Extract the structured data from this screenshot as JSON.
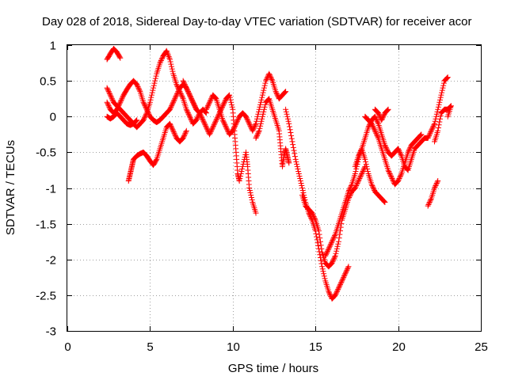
{
  "chart_data": {
    "type": "scatter",
    "title": "Day 028 of 2018, Sidereal Day-to-day VTEC variation (SDTVAR) for receiver acor",
    "xlabel": "GPS time / hours",
    "ylabel": "SDTVAR / TECUs",
    "xlim": [
      0,
      25
    ],
    "ylim": [
      -3,
      1
    ],
    "xticks": [
      "0",
      "5",
      "10",
      "15",
      "20",
      "25"
    ],
    "yticks": [
      "1",
      "0.5",
      "0",
      "-0.5",
      "-1",
      "-1.5",
      "-2",
      "-2.5",
      "-3"
    ],
    "grid": true,
    "legend": "none",
    "marker": "+",
    "color": "#ff0000",
    "series": [
      {
        "points": [
          [
            2.4,
            0.8
          ],
          [
            2.6,
            0.88
          ],
          [
            2.8,
            0.95
          ],
          [
            3.0,
            0.9
          ],
          [
            3.2,
            0.82
          ]
        ]
      },
      {
        "points": [
          [
            2.4,
            0.4
          ],
          [
            2.6,
            0.3
          ],
          [
            2.8,
            0.2
          ],
          [
            3.0,
            0.15
          ],
          [
            3.2,
            0.1
          ],
          [
            3.4,
            0.05
          ],
          [
            3.6,
            0.0
          ],
          [
            3.8,
            -0.05
          ],
          [
            4.0,
            -0.1
          ],
          [
            4.2,
            -0.15
          ],
          [
            4.4,
            -0.1
          ],
          [
            4.6,
            -0.05
          ],
          [
            4.8,
            0.05
          ],
          [
            5.0,
            0.2
          ],
          [
            5.2,
            0.4
          ],
          [
            5.4,
            0.6
          ],
          [
            5.6,
            0.75
          ],
          [
            5.8,
            0.85
          ],
          [
            6.0,
            0.92
          ],
          [
            6.2,
            0.8
          ],
          [
            6.4,
            0.6
          ],
          [
            6.6,
            0.45
          ],
          [
            6.8,
            0.35
          ],
          [
            7.0,
            0.25
          ],
          [
            7.2,
            0.1
          ],
          [
            7.4,
            0.0
          ],
          [
            7.6,
            -0.1
          ],
          [
            7.8,
            -0.05
          ],
          [
            8.0,
            0.05
          ],
          [
            8.2,
            0.1
          ],
          [
            8.4,
            0.05
          ]
        ]
      },
      {
        "points": [
          [
            2.4,
            0.2
          ],
          [
            2.6,
            0.1
          ],
          [
            2.8,
            0.05
          ],
          [
            3.0,
            0.1
          ],
          [
            3.2,
            0.2
          ],
          [
            3.4,
            0.3
          ],
          [
            3.6,
            0.38
          ],
          [
            3.8,
            0.45
          ],
          [
            4.0,
            0.5
          ],
          [
            4.2,
            0.45
          ],
          [
            4.4,
            0.35
          ],
          [
            4.6,
            0.2
          ],
          [
            4.8,
            0.1
          ],
          [
            5.0,
            0.0
          ],
          [
            5.2,
            -0.05
          ],
          [
            5.4,
            -0.08
          ],
          [
            5.6,
            -0.05
          ],
          [
            5.8,
            0.0
          ],
          [
            6.0,
            0.05
          ],
          [
            6.2,
            0.1
          ],
          [
            6.4,
            0.2
          ],
          [
            6.6,
            0.3
          ],
          [
            6.8,
            0.4
          ],
          [
            7.0,
            0.45
          ],
          [
            7.2,
            0.4
          ],
          [
            7.4,
            0.3
          ],
          [
            7.6,
            0.2
          ],
          [
            7.8,
            0.1
          ]
        ]
      },
      {
        "points": [
          [
            2.4,
            0.0
          ],
          [
            2.6,
            -0.03
          ],
          [
            2.8,
            0.0
          ],
          [
            3.0,
            0.05
          ],
          [
            3.2,
            0.0
          ],
          [
            3.4,
            -0.05
          ],
          [
            3.6,
            -0.1
          ],
          [
            3.8,
            -0.12
          ],
          [
            4.0,
            -0.1
          ],
          [
            4.2,
            -0.05
          ]
        ]
      },
      {
        "points": [
          [
            3.7,
            -0.9
          ],
          [
            3.8,
            -0.8
          ],
          [
            3.9,
            -0.7
          ],
          [
            4.0,
            -0.6
          ],
          [
            4.2,
            -0.55
          ],
          [
            4.4,
            -0.52
          ],
          [
            4.6,
            -0.5
          ],
          [
            4.8,
            -0.55
          ],
          [
            5.0,
            -0.62
          ],
          [
            5.2,
            -0.68
          ],
          [
            5.4,
            -0.6
          ],
          [
            5.6,
            -0.45
          ],
          [
            5.8,
            -0.3
          ],
          [
            6.0,
            -0.15
          ],
          [
            6.2,
            -0.1
          ],
          [
            6.4,
            -0.2
          ],
          [
            6.6,
            -0.3
          ],
          [
            6.8,
            -0.35
          ],
          [
            7.0,
            -0.3
          ],
          [
            7.2,
            -0.2
          ]
        ]
      },
      {
        "points": [
          [
            7.0,
            0.5
          ],
          [
            7.2,
            0.4
          ],
          [
            7.4,
            0.3
          ],
          [
            7.6,
            0.2
          ],
          [
            7.8,
            0.1
          ],
          [
            8.0,
            0.05
          ],
          [
            8.2,
            -0.05
          ],
          [
            8.4,
            -0.15
          ],
          [
            8.6,
            -0.25
          ],
          [
            8.8,
            -0.15
          ],
          [
            9.0,
            -0.05
          ],
          [
            9.2,
            0.05
          ],
          [
            9.4,
            0.15
          ],
          [
            9.6,
            0.25
          ],
          [
            9.8,
            0.3
          ],
          [
            10.0,
            0.1
          ],
          [
            10.1,
            -0.2
          ],
          [
            10.2,
            -0.5
          ],
          [
            10.3,
            -0.8
          ],
          [
            10.4,
            -0.9
          ],
          [
            10.6,
            -0.7
          ],
          [
            10.8,
            -0.5
          ],
          [
            10.9,
            -0.7
          ],
          [
            11.0,
            -1.0
          ],
          [
            11.2,
            -1.2
          ],
          [
            11.4,
            -1.35
          ]
        ]
      },
      {
        "points": [
          [
            8.4,
            0.1
          ],
          [
            8.6,
            0.2
          ],
          [
            8.8,
            0.3
          ],
          [
            9.0,
            0.25
          ],
          [
            9.2,
            0.1
          ],
          [
            9.4,
            -0.05
          ],
          [
            9.6,
            -0.15
          ],
          [
            9.8,
            -0.25
          ],
          [
            10.0,
            -0.2
          ],
          [
            10.2,
            -0.1
          ],
          [
            10.4,
            0.0
          ],
          [
            10.6,
            0.05
          ],
          [
            10.8,
            0.0
          ],
          [
            11.0,
            -0.1
          ],
          [
            11.2,
            -0.2
          ],
          [
            11.4,
            -0.1
          ],
          [
            11.6,
            0.1
          ],
          [
            11.8,
            0.3
          ],
          [
            12.0,
            0.5
          ],
          [
            12.2,
            0.6
          ],
          [
            12.4,
            0.5
          ],
          [
            12.6,
            0.35
          ],
          [
            12.8,
            0.25
          ],
          [
            13.0,
            0.3
          ],
          [
            13.2,
            0.35
          ]
        ]
      },
      {
        "points": [
          [
            11.4,
            -0.3
          ],
          [
            11.6,
            -0.2
          ],
          [
            11.8,
            0.0
          ],
          [
            12.0,
            0.2
          ],
          [
            12.2,
            0.25
          ],
          [
            12.4,
            0.1
          ],
          [
            12.6,
            -0.05
          ],
          [
            12.8,
            -0.2
          ],
          [
            12.9,
            -0.45
          ],
          [
            13.0,
            -0.7
          ],
          [
            13.1,
            -0.55
          ],
          [
            13.2,
            -0.45
          ],
          [
            13.3,
            -0.55
          ],
          [
            13.4,
            -0.65
          ]
        ]
      },
      {
        "points": [
          [
            13.2,
            0.1
          ],
          [
            13.4,
            -0.1
          ],
          [
            13.6,
            -0.35
          ],
          [
            13.8,
            -0.6
          ],
          [
            14.0,
            -0.8
          ],
          [
            14.2,
            -1.0
          ],
          [
            14.4,
            -1.2
          ],
          [
            14.6,
            -1.35
          ],
          [
            14.8,
            -1.45
          ],
          [
            15.0,
            -1.6
          ],
          [
            15.2,
            -1.85
          ],
          [
            15.4,
            -2.1
          ],
          [
            15.6,
            -2.3
          ],
          [
            15.8,
            -2.45
          ],
          [
            16.0,
            -2.55
          ],
          [
            16.2,
            -2.5
          ],
          [
            16.4,
            -2.4
          ],
          [
            16.6,
            -2.3
          ],
          [
            16.8,
            -2.2
          ],
          [
            17.0,
            -2.1
          ]
        ]
      },
      {
        "points": [
          [
            14.2,
            -1.1
          ],
          [
            14.4,
            -1.25
          ],
          [
            14.6,
            -1.3
          ],
          [
            14.8,
            -1.35
          ],
          [
            15.0,
            -1.45
          ],
          [
            15.2,
            -1.6
          ],
          [
            15.4,
            -1.9
          ],
          [
            15.6,
            -2.05
          ],
          [
            15.8,
            -2.1
          ],
          [
            16.0,
            -2.05
          ],
          [
            16.2,
            -1.95
          ],
          [
            16.4,
            -1.75
          ],
          [
            16.6,
            -1.45
          ],
          [
            16.8,
            -1.3
          ],
          [
            17.0,
            -1.15
          ],
          [
            17.2,
            -1.05
          ],
          [
            17.4,
            -1.0
          ],
          [
            17.6,
            -0.9
          ],
          [
            17.8,
            -0.8
          ],
          [
            18.0,
            -0.7
          ]
        ]
      },
      {
        "points": [
          [
            15.6,
            -1.95
          ],
          [
            15.8,
            -1.85
          ],
          [
            16.0,
            -1.75
          ],
          [
            16.2,
            -1.65
          ],
          [
            16.4,
            -1.5
          ],
          [
            16.6,
            -1.35
          ],
          [
            16.8,
            -1.2
          ],
          [
            17.0,
            -1.05
          ],
          [
            17.2,
            -0.95
          ],
          [
            17.4,
            -0.8
          ],
          [
            17.6,
            -0.6
          ],
          [
            17.8,
            -0.45
          ],
          [
            18.0,
            -0.3
          ],
          [
            18.2,
            -0.15
          ],
          [
            18.4,
            -0.05
          ],
          [
            18.6,
            0.0
          ],
          [
            18.8,
            -0.1
          ],
          [
            19.0,
            -0.25
          ],
          [
            19.2,
            -0.4
          ],
          [
            19.4,
            -0.5
          ],
          [
            19.6,
            -0.55
          ],
          [
            19.8,
            -0.5
          ],
          [
            20.0,
            -0.45
          ],
          [
            20.2,
            -0.55
          ],
          [
            20.4,
            -0.7
          ],
          [
            20.6,
            -0.75
          ],
          [
            20.8,
            -0.6
          ],
          [
            21.0,
            -0.45
          ],
          [
            21.2,
            -0.4
          ],
          [
            21.4,
            -0.35
          ],
          [
            21.6,
            -0.3
          ],
          [
            21.8,
            -0.3
          ],
          [
            22.0,
            -0.2
          ],
          [
            22.2,
            -0.1
          ],
          [
            22.4,
            0.1
          ],
          [
            22.6,
            0.3
          ],
          [
            22.8,
            0.5
          ],
          [
            23.0,
            0.55
          ]
        ]
      },
      {
        "points": [
          [
            17.4,
            -0.7
          ],
          [
            17.6,
            -0.55
          ],
          [
            17.8,
            -0.45
          ],
          [
            18.0,
            -0.6
          ],
          [
            18.2,
            -0.8
          ],
          [
            18.4,
            -0.95
          ],
          [
            18.6,
            -1.05
          ],
          [
            18.8,
            -1.1
          ],
          [
            19.0,
            -1.15
          ],
          [
            19.2,
            -1.2
          ]
        ]
      },
      {
        "points": [
          [
            18.0,
            0.0
          ],
          [
            18.2,
            -0.05
          ],
          [
            18.4,
            -0.1
          ],
          [
            18.6,
            -0.2
          ],
          [
            18.8,
            -0.3
          ],
          [
            19.0,
            -0.45
          ],
          [
            19.2,
            -0.6
          ],
          [
            19.4,
            -0.75
          ],
          [
            19.6,
            -0.85
          ],
          [
            19.8,
            -0.95
          ],
          [
            20.0,
            -0.9
          ],
          [
            20.2,
            -0.8
          ],
          [
            20.4,
            -0.65
          ],
          [
            20.6,
            -0.5
          ],
          [
            20.8,
            -0.4
          ],
          [
            21.0,
            -0.35
          ],
          [
            21.2,
            -0.3
          ],
          [
            21.4,
            -0.25
          ]
        ]
      },
      {
        "points": [
          [
            18.6,
            0.1
          ],
          [
            18.8,
            0.05
          ],
          [
            19.0,
            -0.05
          ],
          [
            19.2,
            0.05
          ],
          [
            19.4,
            0.1
          ]
        ]
      },
      {
        "points": [
          [
            21.8,
            -1.25
          ],
          [
            22.0,
            -1.15
          ],
          [
            22.2,
            -1.0
          ],
          [
            22.4,
            -0.9
          ]
        ]
      },
      {
        "points": [
          [
            22.2,
            -0.35
          ],
          [
            22.4,
            -0.2
          ],
          [
            22.6,
            0.05
          ],
          [
            22.8,
            0.1
          ],
          [
            23.0,
            0.1
          ],
          [
            23.2,
            0.15
          ],
          [
            23.0,
            0.0
          ]
        ]
      }
    ]
  }
}
